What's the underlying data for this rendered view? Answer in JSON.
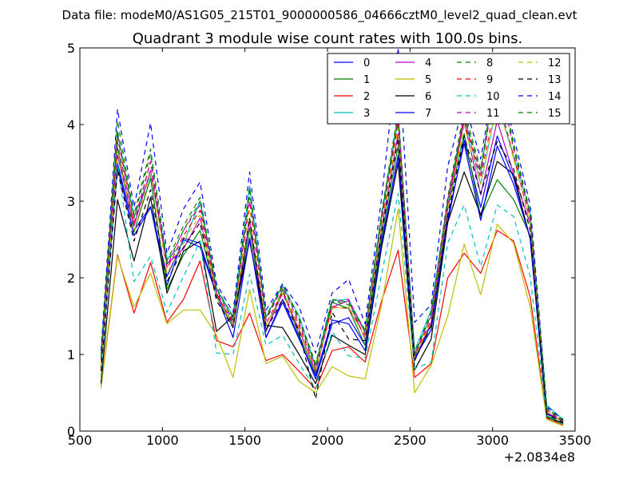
{
  "figure": {
    "suptitle": "Data file: modeM0/AS1G05_215T01_9000000586_04666cztM0_level2_quad_clean.evt"
  },
  "chart_data": {
    "type": "line",
    "title": "Quadrant 3 module wise count rates with 100.0s bins.",
    "xlabel": "",
    "ylabel": "",
    "x_offset_label": "+2.0834e8",
    "xlim": [
      500,
      3500
    ],
    "ylim": [
      0,
      5
    ],
    "xticks": [
      500,
      1000,
      1500,
      2000,
      2500,
      3000,
      3500
    ],
    "yticks": [
      0,
      1,
      2,
      3,
      4,
      5
    ],
    "grid": false,
    "legend": {
      "position": "top-right",
      "ncol": 4
    },
    "x": [
      628,
      728,
      828,
      928,
      1028,
      1128,
      1228,
      1328,
      1428,
      1528,
      1628,
      1728,
      1828,
      1928,
      2028,
      2128,
      2228,
      2328,
      2428,
      2528,
      2628,
      2728,
      2828,
      2928,
      3028,
      3128,
      3228,
      3328,
      3428
    ],
    "series": [
      {
        "name": "0",
        "color": "#0000ff",
        "dash": "solid",
        "values": [
          0.9,
          3.5,
          2.62,
          2.93,
          1.9,
          2.52,
          2.45,
          1.78,
          1.4,
          2.52,
          1.22,
          1.72,
          1.22,
          0.68,
          1.4,
          1.48,
          1.12,
          2.48,
          3.58,
          0.92,
          1.4,
          2.72,
          3.8,
          2.92,
          3.85,
          3.3,
          2.52,
          0.22,
          0.14
        ]
      },
      {
        "name": "1",
        "color": "#008000",
        "dash": "solid",
        "values": [
          0.82,
          3.7,
          2.6,
          3.3,
          1.85,
          2.3,
          2.62,
          1.75,
          1.35,
          2.65,
          1.3,
          1.85,
          1.25,
          0.75,
          1.68,
          1.6,
          1.12,
          2.55,
          3.72,
          0.98,
          1.32,
          2.9,
          3.88,
          2.8,
          3.28,
          3.02,
          2.55,
          0.2,
          0.1
        ]
      },
      {
        "name": "2",
        "color": "#ff0000",
        "dash": "solid",
        "values": [
          0.58,
          2.3,
          1.54,
          2.2,
          1.42,
          1.72,
          2.22,
          1.18,
          1.1,
          1.54,
          0.92,
          1.0,
          0.78,
          0.55,
          1.05,
          1.1,
          0.9,
          1.7,
          2.36,
          0.7,
          0.88,
          2.0,
          2.32,
          2.06,
          2.62,
          2.48,
          1.75,
          0.17,
          0.08
        ]
      },
      {
        "name": "3",
        "color": "#00bfbf",
        "dash": "solid",
        "values": [
          0.95,
          3.9,
          2.8,
          3.35,
          2.25,
          2.45,
          3.0,
          1.85,
          1.5,
          3.2,
          1.48,
          1.9,
          1.5,
          0.85,
          1.7,
          1.72,
          1.3,
          2.8,
          4.05,
          1.05,
          1.58,
          3.0,
          4.12,
          3.22,
          4.28,
          3.6,
          2.85,
          0.34,
          0.15
        ]
      },
      {
        "name": "4",
        "color": "#bf00bf",
        "dash": "solid",
        "values": [
          0.85,
          3.6,
          2.68,
          3.4,
          2.18,
          2.38,
          2.78,
          1.8,
          1.38,
          2.75,
          1.32,
          1.8,
          1.32,
          0.78,
          1.62,
          1.7,
          1.2,
          2.65,
          3.88,
          0.95,
          1.42,
          2.92,
          4.05,
          3.08,
          4.05,
          3.35,
          2.7,
          0.24,
          0.12
        ]
      },
      {
        "name": "5",
        "color": "#bfbf00",
        "dash": "solid",
        "values": [
          0.56,
          2.28,
          1.62,
          2.06,
          1.4,
          1.58,
          1.58,
          1.25,
          0.7,
          1.85,
          0.88,
          0.98,
          0.65,
          0.5,
          0.84,
          0.72,
          0.68,
          1.65,
          2.9,
          0.5,
          0.86,
          1.5,
          2.44,
          1.78,
          2.7,
          2.45,
          1.62,
          0.15,
          0.07
        ]
      },
      {
        "name": "6",
        "color": "#000000",
        "dash": "solid",
        "values": [
          0.62,
          3.02,
          2.22,
          3.05,
          1.8,
          2.35,
          2.48,
          1.3,
          1.5,
          2.48,
          1.38,
          1.35,
          1.0,
          0.62,
          1.25,
          1.12,
          1.0,
          2.4,
          3.5,
          0.8,
          1.2,
          2.72,
          3.38,
          2.82,
          3.52,
          3.35,
          2.5,
          0.18,
          0.1
        ]
      },
      {
        "name": "7",
        "color": "#0000ff",
        "dash": "solid",
        "values": [
          0.92,
          3.45,
          2.55,
          2.92,
          2.02,
          2.5,
          2.4,
          1.78,
          1.22,
          2.52,
          1.22,
          1.68,
          1.2,
          0.72,
          1.45,
          1.4,
          1.05,
          2.45,
          3.6,
          0.95,
          1.32,
          2.78,
          3.75,
          2.75,
          3.72,
          3.22,
          2.52,
          0.22,
          0.14
        ]
      },
      {
        "name": "8",
        "color": "#008000",
        "dash": "dashed",
        "values": [
          1.0,
          4.05,
          2.82,
          3.68,
          2.22,
          2.68,
          3.05,
          1.88,
          1.48,
          3.18,
          1.5,
          1.92,
          1.48,
          0.88,
          1.72,
          1.68,
          1.32,
          2.85,
          4.18,
          1.02,
          1.55,
          3.05,
          4.18,
          3.42,
          4.78,
          3.75,
          2.85,
          0.3,
          0.14
        ]
      },
      {
        "name": "9",
        "color": "#ff0000",
        "dash": "dashed",
        "values": [
          0.88,
          3.85,
          2.72,
          3.52,
          2.12,
          2.55,
          2.88,
          1.78,
          1.42,
          3.0,
          1.4,
          1.82,
          1.38,
          0.8,
          1.62,
          1.6,
          1.25,
          2.72,
          4.02,
          0.98,
          1.45,
          2.95,
          4.05,
          3.3,
          4.4,
          3.58,
          2.75,
          0.26,
          0.12
        ]
      },
      {
        "name": "10",
        "color": "#00bfbf",
        "dash": "dashed",
        "values": [
          0.7,
          3.5,
          1.95,
          2.28,
          1.55,
          2.02,
          2.48,
          1.02,
          1.0,
          2.05,
          1.12,
          1.25,
          0.88,
          0.55,
          1.3,
          0.98,
          0.95,
          2.05,
          3.1,
          0.82,
          0.9,
          2.45,
          2.95,
          2.15,
          2.95,
          2.8,
          2.02,
          0.18,
          0.09
        ]
      },
      {
        "name": "11",
        "color": "#bf00bf",
        "dash": "dashed",
        "values": [
          0.92,
          3.78,
          2.68,
          3.52,
          2.15,
          2.62,
          2.95,
          1.82,
          1.45,
          3.05,
          1.45,
          1.88,
          1.42,
          0.82,
          1.68,
          1.72,
          1.28,
          2.78,
          4.1,
          1.0,
          1.5,
          3.0,
          4.1,
          3.35,
          4.7,
          3.68,
          2.8,
          0.28,
          0.13
        ]
      },
      {
        "name": "12",
        "color": "#bfbf00",
        "dash": "dashed",
        "values": [
          0.86,
          3.65,
          2.6,
          3.38,
          2.05,
          2.48,
          2.82,
          1.75,
          1.4,
          2.9,
          1.38,
          1.8,
          1.35,
          0.78,
          1.6,
          1.62,
          1.22,
          2.68,
          3.95,
          0.96,
          1.42,
          2.9,
          3.98,
          3.22,
          4.3,
          3.55,
          2.72,
          0.26,
          0.12
        ]
      },
      {
        "name": "13",
        "color": "#000000",
        "dash": "dashed",
        "values": [
          0.78,
          3.4,
          2.48,
          3.15,
          1.95,
          2.4,
          2.72,
          1.7,
          1.35,
          2.78,
          1.32,
          1.72,
          1.3,
          0.42,
          1.55,
          1.2,
          1.18,
          2.6,
          3.82,
          0.92,
          1.38,
          2.82,
          3.85,
          3.1,
          3.78,
          3.42,
          2.62,
          0.22,
          0.11
        ]
      },
      {
        "name": "14",
        "color": "#0000ff",
        "dash": "dashed",
        "values": [
          1.05,
          4.2,
          2.92,
          4.02,
          2.32,
          2.9,
          3.25,
          1.92,
          1.55,
          3.38,
          1.58,
          1.92,
          1.62,
          1.02,
          1.8,
          1.98,
          1.4,
          3.05,
          5.0,
          1.42,
          1.65,
          3.45,
          4.3,
          3.55,
          4.8,
          3.85,
          2.95,
          0.32,
          0.15
        ]
      },
      {
        "name": "15",
        "color": "#008000",
        "dash": "dashed",
        "values": [
          0.96,
          3.92,
          2.78,
          3.62,
          2.18,
          2.62,
          3.0,
          1.85,
          1.45,
          3.12,
          1.48,
          1.9,
          1.45,
          0.85,
          1.7,
          1.65,
          1.3,
          2.82,
          4.12,
          1.0,
          1.52,
          3.02,
          4.12,
          3.38,
          4.75,
          3.7,
          2.82,
          0.29,
          0.13
        ]
      }
    ]
  }
}
